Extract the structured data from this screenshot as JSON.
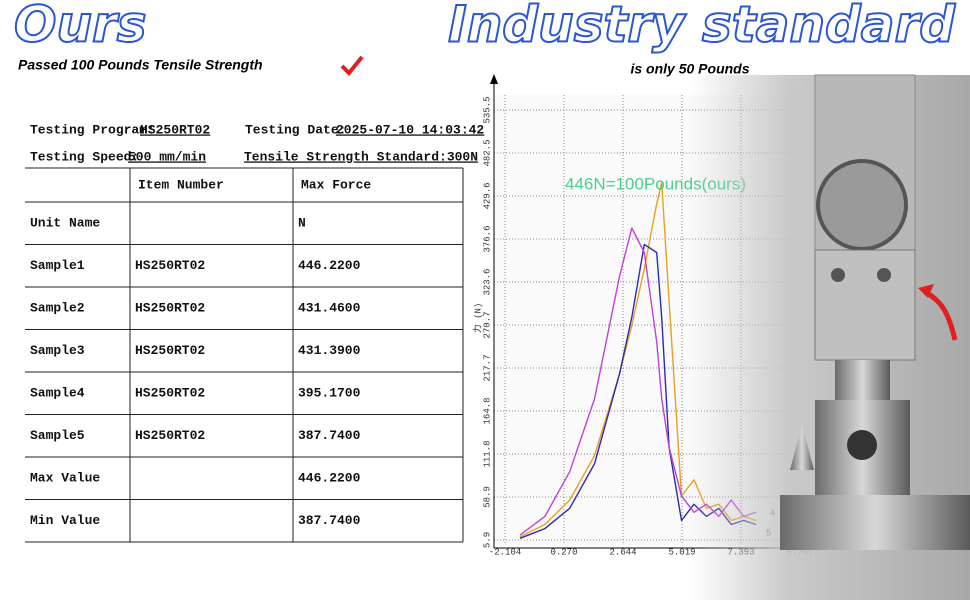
{
  "header": {
    "left_title": "Ours",
    "right_title": "Industry standard",
    "left_subtitle": "Passed 100 Pounds Tensile Strength",
    "right_subtitle": "is only 50 Pounds"
  },
  "table": {
    "meta": [
      {
        "label": "Testing Program:",
        "value": "HS250RT02"
      },
      {
        "label": "Testing Date:",
        "value": "2025-07-10 14:03:42"
      },
      {
        "label": "Testing Speed:",
        "value": "500 mm/min"
      },
      {
        "label": "Tensile Strength Standard:300N"
      }
    ],
    "columns": [
      "Item Number",
      "Max Force"
    ],
    "rows": [
      [
        "Unit Name",
        null,
        "N"
      ],
      [
        "Sample1",
        "HS250RT02",
        "446.2200"
      ],
      [
        "Sample2",
        "HS250RT02",
        "431.4600"
      ],
      [
        "Sample3",
        "HS250RT02",
        "431.3900"
      ],
      [
        "Sample4",
        "HS250RT02",
        "395.1700"
      ],
      [
        "Sample5",
        "HS250RT02",
        "387.7400"
      ],
      [
        "Max Value",
        null,
        "446.2200"
      ],
      [
        "Min Value",
        null,
        "387.7400"
      ]
    ]
  },
  "chart_data": {
    "type": "line",
    "y_label": "力 (N)",
    "annotation": "446N=100Pounds(ours)",
    "curve_labels": [
      "4",
      "5"
    ],
    "x": [
      -1.5,
      -0.5,
      0.5,
      1.5,
      2.5,
      3.0,
      3.5,
      4.0,
      4.2,
      4.5,
      5.0,
      5.5,
      6.0,
      6.5,
      7.0,
      7.5,
      8.0
    ],
    "series": [
      {
        "color": "#e8a020",
        "values": [
          10,
          25,
          55,
          110,
          210,
          270,
          340,
          420,
          446,
          300,
          60,
          80,
          45,
          50,
          30,
          35,
          30
        ]
      },
      {
        "color": "#2a2ab8",
        "values": [
          8,
          20,
          45,
          100,
          210,
          280,
          370,
          360,
          280,
          120,
          30,
          50,
          35,
          45,
          25,
          30,
          25
        ]
      },
      {
        "color": "#c040d8",
        "values": [
          12,
          35,
          90,
          180,
          330,
          390,
          360,
          250,
          180,
          120,
          60,
          40,
          50,
          35,
          55,
          35,
          40
        ]
      }
    ],
    "xlim": [
      -2.104,
      9.767
    ],
    "ylim": [
      5.9,
      535.5
    ],
    "xticks": [
      -2.104,
      {
        "value": 0.27,
        "label": "0.270"
      },
      2.644,
      5.019,
      7.393,
      9.767
    ],
    "yticks": [
      5.9,
      58.9,
      111.8,
      164.8,
      217.7,
      270.7,
      323.6,
      376.6,
      429.6,
      482.5,
      535.5
    ],
    "grid": true
  }
}
